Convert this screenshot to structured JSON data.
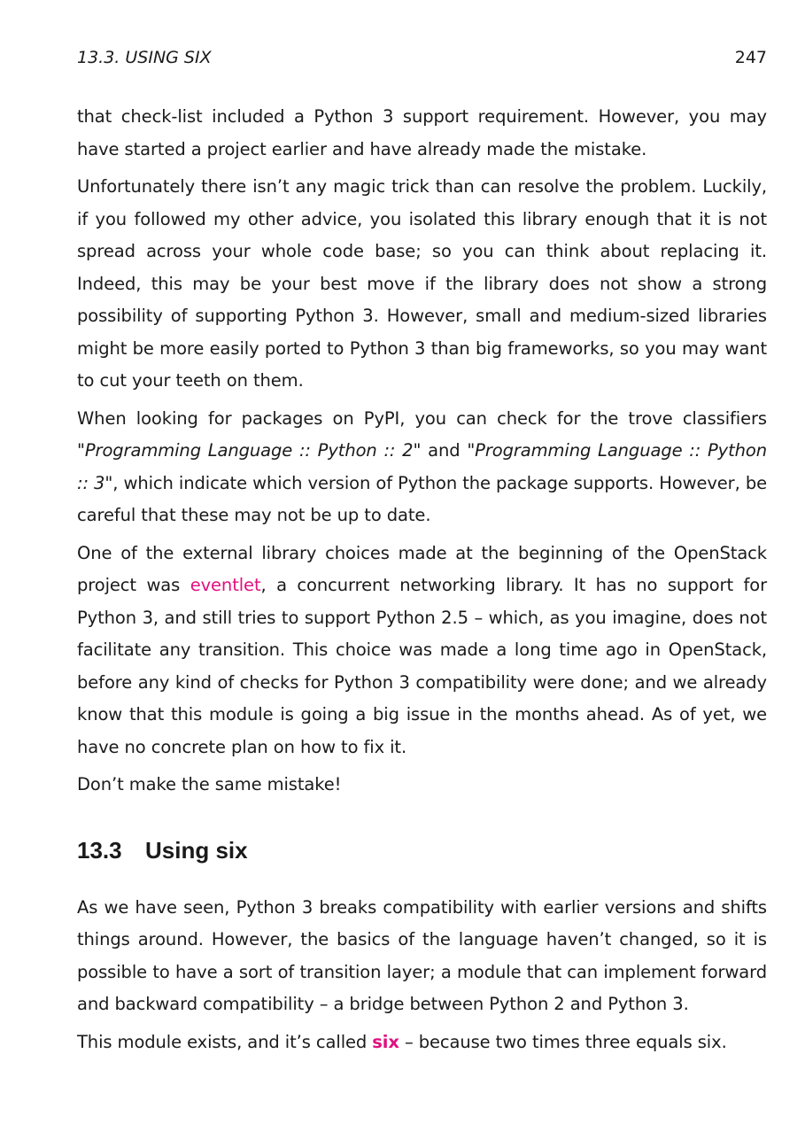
{
  "header": {
    "title": "13.3.  USING SIX",
    "page_number": "247"
  },
  "paragraphs": {
    "p1": "that check-list included a Python 3 support requirement.  However, you may have started a project earlier and have already made the mistake.",
    "p2": "Unfortunately there isn’t any magic trick than can resolve the problem.  Luckily, if you followed my other advice, you isolated this library enough that it is not spread across your whole code base; so you can think about replacing it.  Indeed, this may be your best move if the library does not show a strong possibility of supporting Python 3.  However, small and medium-sized libraries might be more easily ported to Python 3 than big frameworks, so you may want to cut your teeth on them.",
    "p3_a": "When looking for packages on PyPI, you can check for the trove classifiers ",
    "p3_em1": "\"Programming Language :: Python :: 2\"",
    "p3_b": " and ",
    "p3_em2": "\"Programming Language :: Python :: 3\"",
    "p3_c": ", which indicate which version of Python the package supports.  However, be careful that these may not be up to date.",
    "p4_a": "One of the external library choices made at the beginning of the OpenStack project was ",
    "p4_link": "eventlet",
    "p4_b": ", a concurrent networking library.  It has no support for Python 3, and still tries to support Python 2.5 – which, as you imagine, does not facilitate any transition.  This choice was made a long time ago in OpenStack, before any kind of checks for Python 3 compatibility were done; and we already know that this module is going a big issue in the months ahead.  As of yet, we have no concrete plan on how to fix it.",
    "p5": "Don’t make the same mistake!"
  },
  "section": {
    "number": "13.3",
    "title": "Using six"
  },
  "section_paragraphs": {
    "s1": "As we have seen, Python 3 breaks compatibility with earlier versions and shifts things around.  However, the basics of the language haven’t changed, so it is possible to have a sort of transition layer; a module that can implement forward and backward compatibility – a bridge between Python 2 and Python 3.",
    "s2_a": "This module exists, and it’s called ",
    "s2_link": "six",
    "s2_b": " – because two times three equals six."
  },
  "colors": {
    "link": "#e0107f",
    "text": "#1a1a1a"
  }
}
